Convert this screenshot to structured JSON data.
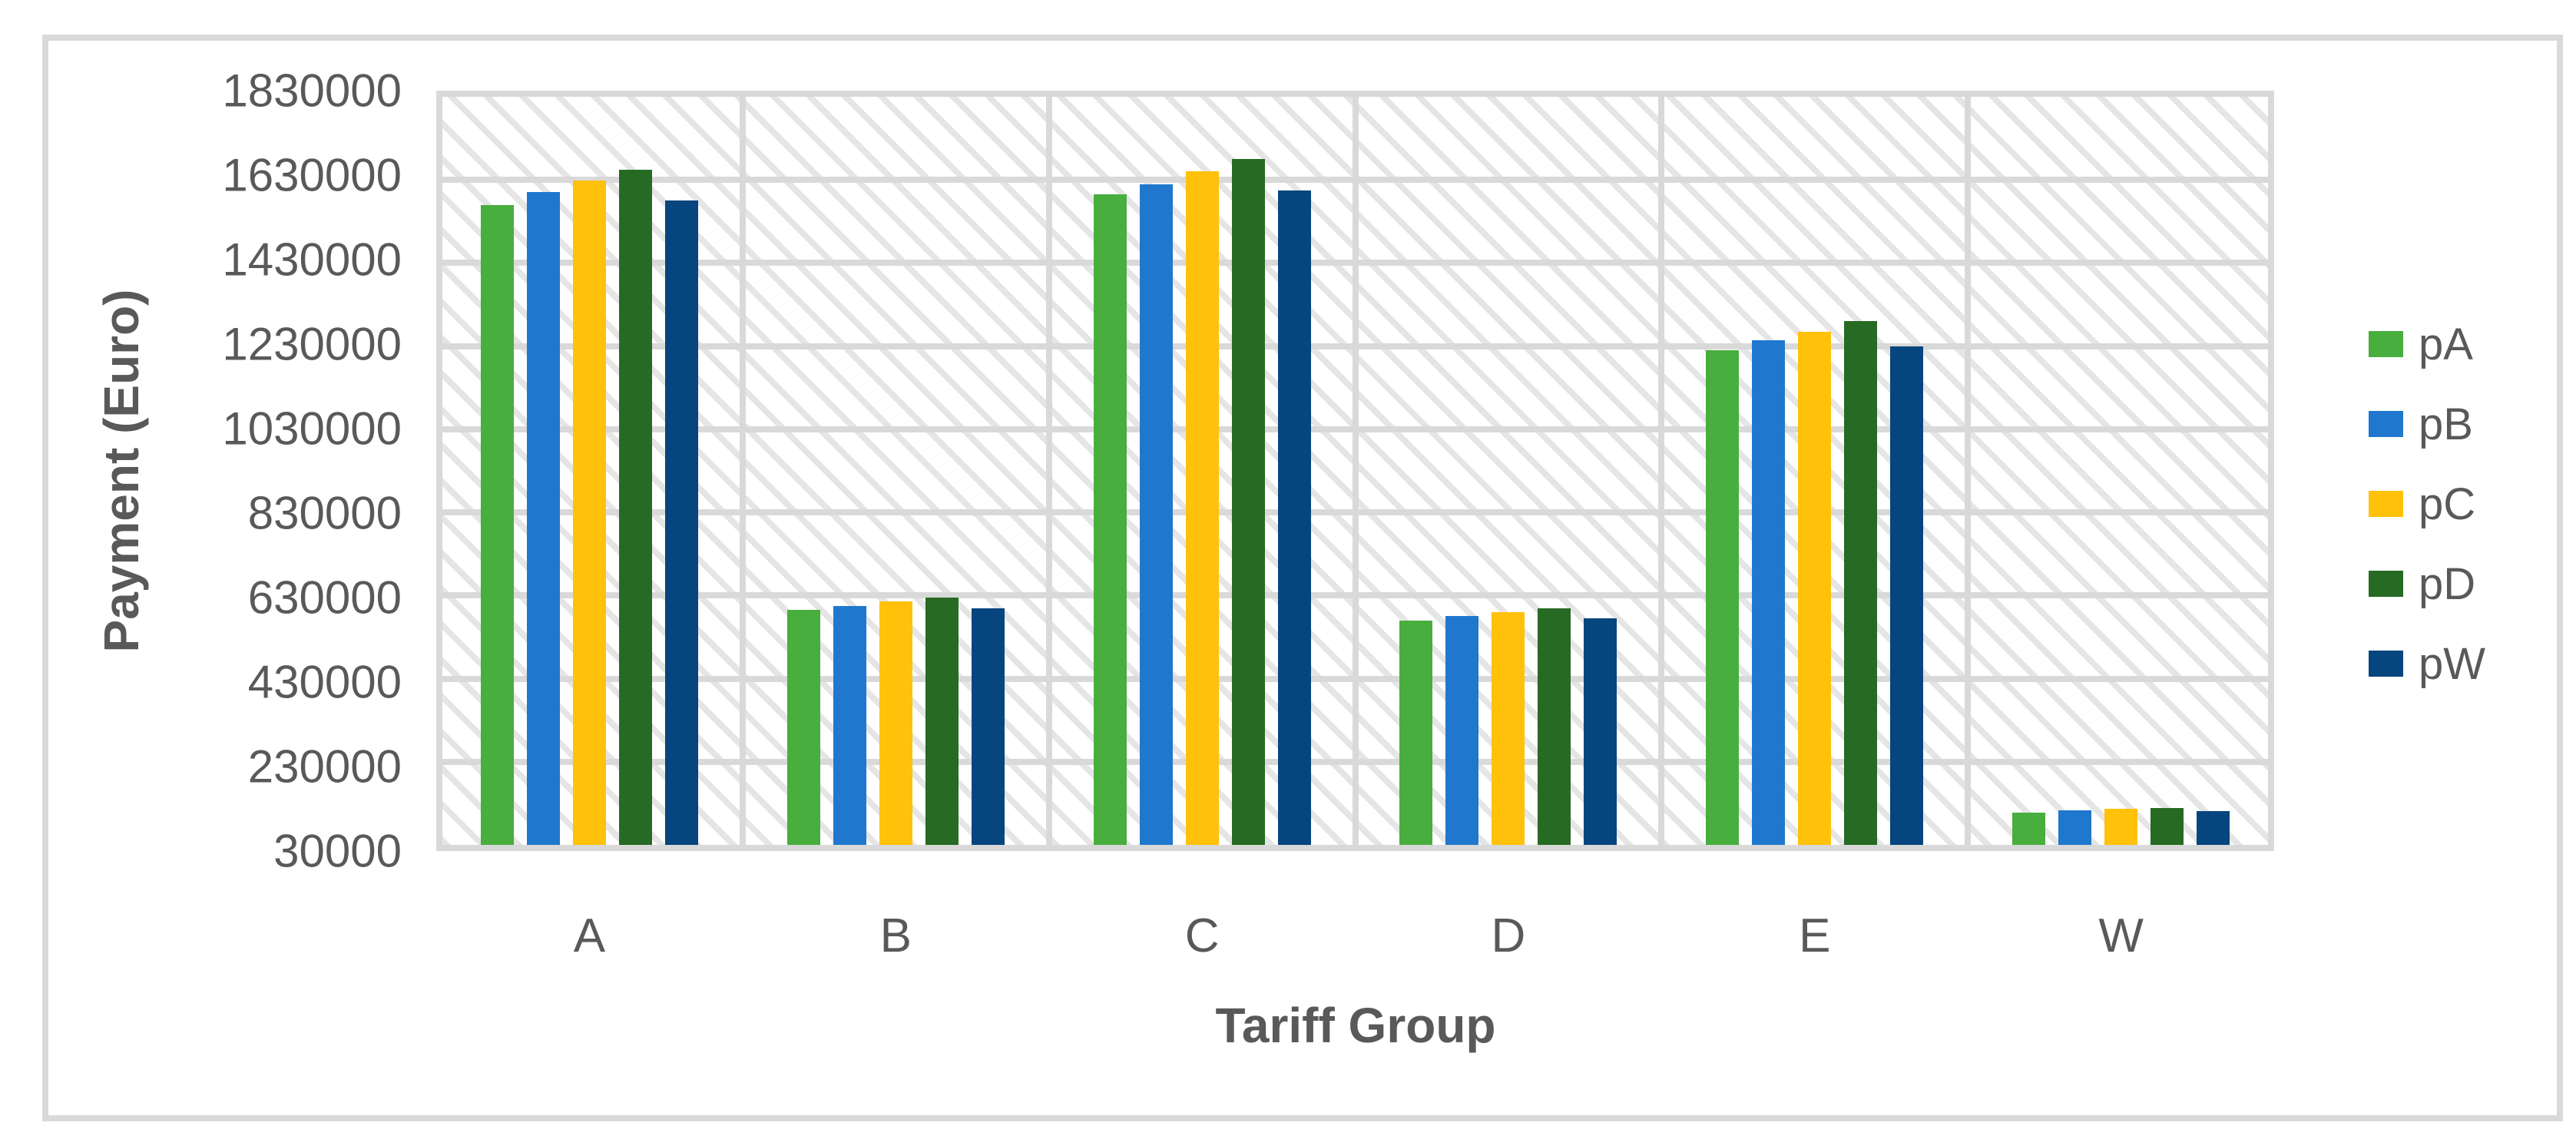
{
  "chart_data": {
    "type": "bar",
    "title": "",
    "xlabel": "Tariff Group",
    "ylabel": "Payment (Euro)",
    "categories": [
      "A",
      "B",
      "C",
      "D",
      "E",
      "W"
    ],
    "series": [
      {
        "name": "pA",
        "color": "#48AE3E",
        "values": [
          1570000,
          595000,
          1595000,
          570000,
          1220000,
          108000
        ]
      },
      {
        "name": "pB",
        "color": "#1F78CE",
        "values": [
          1600000,
          605000,
          1620000,
          580000,
          1245000,
          113000
        ]
      },
      {
        "name": "pC",
        "color": "#FFC10A",
        "values": [
          1628000,
          615000,
          1650000,
          590000,
          1265000,
          116000
        ]
      },
      {
        "name": "pD",
        "color": "#276A23",
        "values": [
          1655000,
          625000,
          1680000,
          600000,
          1290000,
          119000
        ]
      },
      {
        "name": "pW",
        "color": "#06457D",
        "values": [
          1580000,
          600000,
          1605000,
          575000,
          1230000,
          112000
        ]
      }
    ],
    "ylim": [
      30000,
      1830000
    ],
    "ytick_step": 200000,
    "yticks": [
      "30000",
      "230000",
      "430000",
      "630000",
      "830000",
      "1030000",
      "1230000",
      "1430000",
      "1630000",
      "1830000"
    ],
    "legend_position": "right",
    "legend_entries": [
      "pA",
      "pB",
      "pC",
      "pD",
      "pW"
    ],
    "grid": "horizontal-major + vertical-category-boundaries",
    "plot_background": "light-diagonal-hatch",
    "colors": {
      "gridline": "#d9d9d9",
      "frame_border": "#d9d9d9",
      "axis_text": "#595959",
      "background": "#ffffff"
    }
  }
}
